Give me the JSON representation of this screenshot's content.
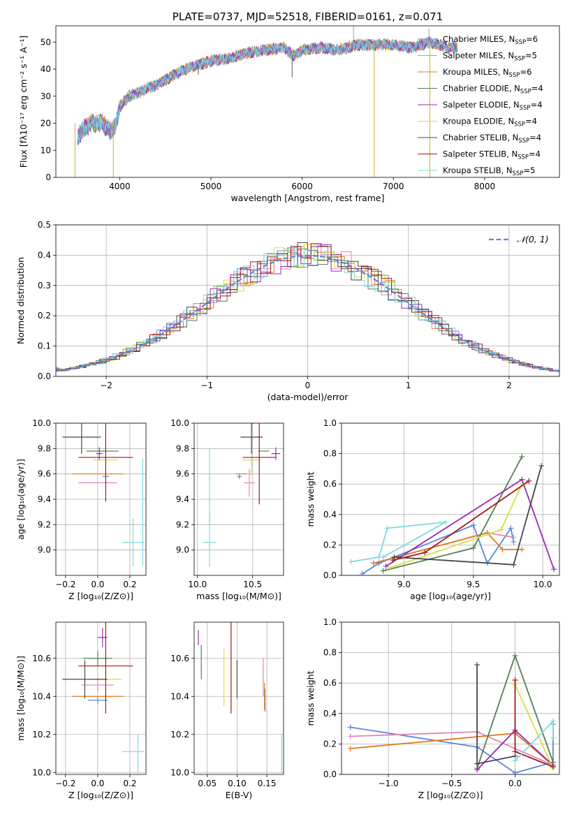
{
  "colors": {
    "Chabrier MILES": "#5b87d6",
    "Salpeter MILES": "#e285b9",
    "Kroupa MILES": "#e07b1c",
    "Chabrier ELODIE": "#547e52",
    "Salpeter ELODIE": "#9a2ab0",
    "Kroupa ELODIE": "#d8df41",
    "Chabrier STELIB": "#474747",
    "Salpeter STELIB": "#a2191d",
    "Kroupa STELIB": "#7fd8dc",
    "normal": "#5b87d6"
  },
  "chart_data": [
    {
      "id": "spectrum",
      "type": "line",
      "title": "PLATE=0737, MJD=52518, FIBERID=0161, z=0.071",
      "xlabel": "wavelength [Angstrom, rest frame]",
      "ylabel": "Flux [fλ10⁻¹⁷ erg cm⁻² s⁻¹ A⁻¹]",
      "xlim": [
        3300,
        8820
      ],
      "ylim": [
        0,
        56
      ],
      "xticks": [
        4000,
        5000,
        6000,
        7000,
        8000
      ],
      "yticks": [
        0,
        10,
        20,
        30,
        40,
        50
      ],
      "grid": false,
      "legend": [
        {
          "model": "Chabrier MILES",
          "label": "Chabrier MILES, N",
          "sub": "SSP",
          "eq": "=6"
        },
        {
          "model": "Salpeter MILES",
          "label": "Salpeter MILES, N",
          "sub": "SSP",
          "eq": "=5"
        },
        {
          "model": "Kroupa MILES",
          "label": "Kroupa MILES, N",
          "sub": "SSP",
          "eq": "=6"
        },
        {
          "model": "Chabrier ELODIE",
          "label": "Chabrier ELODIE, N",
          "sub": "SSP",
          "eq": "=4"
        },
        {
          "model": "Salpeter ELODIE",
          "label": "Salpeter ELODIE, N",
          "sub": "SSP",
          "eq": "=4"
        },
        {
          "model": "Kroupa ELODIE",
          "label": "Kroupa ELODIE, N",
          "sub": "SSP",
          "eq": "=4"
        },
        {
          "model": "Chabrier STELIB",
          "label": "Chabrier STELIB, N",
          "sub": "SSP",
          "eq": "=4"
        },
        {
          "model": "Salpeter STELIB",
          "label": "Salpeter STELIB, N",
          "sub": "SSP",
          "eq": "=4"
        },
        {
          "model": "Kroupa STELIB",
          "label": "Kroupa STELIB, N",
          "sub": "SSP",
          "eq": "=5"
        }
      ],
      "continuum": [
        [
          3540,
          15
        ],
        [
          3600,
          18
        ],
        [
          3700,
          20
        ],
        [
          3800,
          20
        ],
        [
          3900,
          17
        ],
        [
          3950,
          19
        ],
        [
          4000,
          26
        ],
        [
          4100,
          30
        ],
        [
          4200,
          31
        ],
        [
          4300,
          33
        ],
        [
          4400,
          34
        ],
        [
          4600,
          38
        ],
        [
          4800,
          41
        ],
        [
          5000,
          43
        ],
        [
          5200,
          44
        ],
        [
          5400,
          46
        ],
        [
          5600,
          47
        ],
        [
          5800,
          48
        ],
        [
          5900,
          45
        ],
        [
          6000,
          47
        ],
        [
          6200,
          48
        ],
        [
          6400,
          47
        ],
        [
          6600,
          49
        ],
        [
          6800,
          49
        ],
        [
          7000,
          49
        ],
        [
          7200,
          48
        ],
        [
          7400,
          50
        ],
        [
          7600,
          48
        ],
        [
          7700,
          48
        ]
      ],
      "spikes_down": [
        [
          3510,
          0
        ],
        [
          3930,
          0
        ],
        [
          6790,
          0
        ],
        [
          7400,
          0
        ],
        [
          5890,
          37
        ],
        [
          4862,
          38
        ]
      ],
      "spikes_up": [
        [
          6563,
          56
        ],
        [
          7390,
          55
        ]
      ]
    },
    {
      "id": "residuals",
      "type": "histogram",
      "xlabel": "(data-model)/error",
      "ylabel": "Normed distribution",
      "xlim": [
        -2.5,
        2.5
      ],
      "ylim": [
        0,
        0.5
      ],
      "xticks": [
        -2,
        -1,
        0,
        1,
        2
      ],
      "yticks": [
        0.0,
        0.1,
        0.2,
        0.3,
        0.4,
        0.5
      ],
      "grid": true,
      "legend_label": "𝒩(0, 1)",
      "legend_position": "top-right",
      "bin_width": 0.1
    },
    {
      "id": "age-vs-Z",
      "type": "scatter",
      "xlabel": "Z [log₁₀(Z/Z⊙)]",
      "ylabel": "age  [log₁₀(age/yr)]",
      "xlim": [
        -0.26,
        0.3
      ],
      "ylim": [
        8.8,
        10.0
      ],
      "xticks": [
        -0.2,
        0.0,
        0.2
      ],
      "yticks": [
        9.0,
        9.2,
        9.4,
        9.6,
        9.8,
        10.0
      ],
      "grid": true,
      "points": [
        {
          "model": "Chabrier MILES",
          "x": 0.05,
          "y": 9.58,
          "xerr": 0.02,
          "yerr": 0.02
        },
        {
          "model": "Salpeter MILES",
          "x": 0.0,
          "y": 9.53,
          "xerr": 0.12,
          "yerr": 0.0
        },
        {
          "model": "Kroupa MILES",
          "x": 0.0,
          "y": 9.6,
          "xerr": 0.16,
          "yerr": 0.0
        },
        {
          "model": "Chabrier ELODIE",
          "x": 0.03,
          "y": 9.78,
          "xerr": 0.1,
          "yerr": 0.0
        },
        {
          "model": "Salpeter ELODIE",
          "x": 0.01,
          "y": 9.76,
          "xerr": 0.02,
          "yerr": 0.05
        },
        {
          "model": "Kroupa ELODIE",
          "x": 0.05,
          "y": 9.71,
          "xerr": 0.08,
          "yerr": 0.25
        },
        {
          "model": "Chabrier STELIB",
          "x": -0.1,
          "y": 9.89,
          "xerr": 0.12,
          "yerr": 0.13
        },
        {
          "model": "Salpeter STELIB",
          "x": 0.05,
          "y": 9.73,
          "xerr": 0.17,
          "yerr": 0.35
        },
        {
          "model": "Kroupa STELIB",
          "x": 0.22,
          "y": 9.06,
          "xerr": 0.07,
          "yerr": 0.19
        },
        {
          "model": "Kroupa STELIB",
          "x": 0.28,
          "y": 9.3,
          "xerr": 0.0,
          "yerr": 0.42
        }
      ]
    },
    {
      "id": "age-vs-mass",
      "type": "scatter",
      "xlabel": "mass [log₁₀(M/M⊙)]",
      "ylabel": "",
      "xlim": [
        9.97,
        10.78
      ],
      "ylim": [
        8.8,
        10.0
      ],
      "xticks": [
        10.0,
        10.5
      ],
      "yticks": [
        9.0,
        9.2,
        9.4,
        9.6,
        9.8,
        10.0
      ],
      "grid": true,
      "points": [
        {
          "model": "Chabrier MILES",
          "x": 10.38,
          "y": 9.58,
          "xerr": 0.02,
          "yerr": 0.02
        },
        {
          "model": "Salpeter MILES",
          "x": 10.47,
          "y": 9.53,
          "xerr": 0.05,
          "yerr": 0.11
        },
        {
          "model": "Kroupa MILES",
          "x": 10.4,
          "y": 9.6,
          "xerr": 0.05,
          "yerr": 0.0
        },
        {
          "model": "Chabrier ELODIE",
          "x": 10.6,
          "y": 9.78,
          "xerr": 0.05,
          "yerr": 0.0
        },
        {
          "model": "Salpeter ELODIE",
          "x": 10.71,
          "y": 9.76,
          "xerr": 0.04,
          "yerr": 0.05
        },
        {
          "model": "Kroupa ELODIE",
          "x": 10.49,
          "y": 9.71,
          "xerr": 0.08,
          "yerr": 0.12
        },
        {
          "model": "Chabrier STELIB",
          "x": 10.49,
          "y": 9.89,
          "xerr": 0.1,
          "yerr": 0.13
        },
        {
          "model": "Salpeter STELIB",
          "x": 10.56,
          "y": 9.73,
          "xerr": 0.15,
          "yerr": 0.37
        },
        {
          "model": "Kroupa STELIB",
          "x": 10.11,
          "y": 9.06,
          "xerr": 0.06,
          "yerr": 0.19
        },
        {
          "model": "Kroupa STELIB",
          "x": 10.11,
          "y": 9.5,
          "xerr": 0.0,
          "yerr": 0.3
        }
      ]
    },
    {
      "id": "massweight-vs-age",
      "type": "line",
      "xlabel": "age  [log₁₀(age/yr)]",
      "ylabel": "mass weight",
      "xlim": [
        8.55,
        10.12
      ],
      "ylim": [
        0,
        1.0
      ],
      "xticks": [
        9.0,
        9.5,
        10.0
      ],
      "yticks": [
        0.0,
        0.2,
        0.4,
        0.6,
        0.8,
        1.0
      ],
      "grid": true,
      "series": [
        {
          "model": "Chabrier MILES",
          "x": [
            8.7,
            8.82,
            9.5,
            9.6,
            9.77,
            9.79
          ],
          "y": [
            0.01,
            0.08,
            0.33,
            0.08,
            0.31,
            0.22
          ]
        },
        {
          "model": "Salpeter MILES",
          "x": [
            8.78,
            9.6,
            9.79
          ],
          "y": [
            0.08,
            0.28,
            0.25
          ]
        },
        {
          "model": "Kroupa MILES",
          "x": [
            8.78,
            9.6,
            9.71,
            9.85
          ],
          "y": [
            0.08,
            0.28,
            0.17,
            0.17
          ]
        },
        {
          "model": "Chabrier ELODIE",
          "x": [
            8.85,
            9.5,
            9.85
          ],
          "y": [
            0.03,
            0.18,
            0.78
          ]
        },
        {
          "model": "Salpeter ELODIE",
          "x": [
            8.87,
            9.85,
            10.08
          ],
          "y": [
            0.06,
            0.63,
            0.04
          ]
        },
        {
          "model": "Kroupa ELODIE",
          "x": [
            8.9,
            9.7,
            9.85
          ],
          "y": [
            0.05,
            0.3,
            0.6
          ]
        },
        {
          "model": "Chabrier STELIB",
          "x": [
            8.93,
            9.79,
            9.99
          ],
          "y": [
            0.12,
            0.07,
            0.72
          ]
        },
        {
          "model": "Salpeter STELIB",
          "x": [
            8.92,
            9.15,
            9.9
          ],
          "y": [
            0.1,
            0.15,
            0.62
          ]
        },
        {
          "model": "Kroupa STELIB",
          "x": [
            8.62,
            8.82,
            8.88,
            9.3,
            8.85
          ],
          "y": [
            0.09,
            0.12,
            0.31,
            0.35,
            0.12
          ]
        }
      ]
    },
    {
      "id": "mass-vs-Z",
      "type": "scatter",
      "xlabel": "Z [log₁₀(Z/Z⊙)]",
      "ylabel": "mass [log₁₀(M/M⊙)]",
      "xlim": [
        -0.26,
        0.3
      ],
      "ylim": [
        9.99,
        10.79
      ],
      "xticks": [
        -0.2,
        0.0,
        0.2
      ],
      "yticks": [
        10.0,
        10.2,
        10.4,
        10.6
      ],
      "grid": true,
      "points": [
        {
          "model": "Chabrier MILES",
          "x": 0.0,
          "y": 10.38,
          "xerr": 0.06,
          "yerr": 0.02
        },
        {
          "model": "Salpeter MILES",
          "x": 0.0,
          "y": 10.46,
          "xerr": 0.1,
          "yerr": 0.04
        },
        {
          "model": "Kroupa MILES",
          "x": 0.0,
          "y": 10.4,
          "xerr": 0.16,
          "yerr": 0.0
        },
        {
          "model": "Chabrier ELODIE",
          "x": 0.0,
          "y": 10.6,
          "xerr": 0.09,
          "yerr": 0.04
        },
        {
          "model": "Salpeter ELODIE",
          "x": 0.03,
          "y": 10.71,
          "xerr": 0.03,
          "yerr": 0.05
        },
        {
          "model": "Kroupa ELODIE",
          "x": 0.05,
          "y": 10.49,
          "xerr": 0.1,
          "yerr": 0.18
        },
        {
          "model": "Chabrier STELIB",
          "x": -0.08,
          "y": 10.49,
          "xerr": 0.14,
          "yerr": 0.1
        },
        {
          "model": "Salpeter STELIB",
          "x": 0.05,
          "y": 10.56,
          "xerr": 0.17,
          "yerr": 0.25
        },
        {
          "model": "Kroupa STELIB",
          "x": 0.22,
          "y": 10.11,
          "xerr": 0.07,
          "yerr": 0.0
        },
        {
          "model": "Kroupa STELIB",
          "x": 0.25,
          "y": 10.1,
          "xerr": 0.0,
          "yerr": 0.1
        }
      ]
    },
    {
      "id": "mass-vs-EBV",
      "type": "scatter",
      "xlabel": "E(B-V)",
      "ylabel": "",
      "xlim": [
        0.028,
        0.178
      ],
      "ylim": [
        9.99,
        10.79
      ],
      "xticks": [
        0.05,
        0.1,
        0.15
      ],
      "yticks": [
        10.0,
        10.2,
        10.4,
        10.6
      ],
      "grid": true,
      "points": [
        {
          "model": "Chabrier MILES",
          "x": 0.147,
          "y": 10.38,
          "xerr": 0.0,
          "yerr": 0.06
        },
        {
          "model": "Salpeter MILES",
          "x": 0.144,
          "y": 10.5,
          "xerr": 0.0,
          "yerr": 0.1
        },
        {
          "model": "Kroupa MILES",
          "x": 0.146,
          "y": 10.4,
          "xerr": 0.0,
          "yerr": 0.07
        },
        {
          "model": "Chabrier ELODIE",
          "x": 0.04,
          "y": 10.58,
          "xerr": 0.0,
          "yerr": 0.09
        },
        {
          "model": "Salpeter ELODIE",
          "x": 0.035,
          "y": 10.71,
          "xerr": 0.0,
          "yerr": 0.04
        },
        {
          "model": "Kroupa ELODIE",
          "x": 0.078,
          "y": 10.5,
          "xerr": 0.0,
          "yerr": 0.15
        },
        {
          "model": "Chabrier STELIB",
          "x": 0.1,
          "y": 10.49,
          "xerr": 0.0,
          "yerr": 0.1
        },
        {
          "model": "Salpeter STELIB",
          "x": 0.09,
          "y": 10.57,
          "xerr": 0.0,
          "yerr": 0.26
        },
        {
          "model": "Kroupa STELIB",
          "x": 0.175,
          "y": 10.1,
          "xerr": 0.0,
          "yerr": 0.1
        }
      ]
    },
    {
      "id": "massweight-vs-Z",
      "type": "line",
      "xlabel": "Z [log₁₀(Z/Z⊙)]",
      "ylabel": "mass weight",
      "xlim": [
        -1.37,
        0.35
      ],
      "ylim": [
        0,
        1.0
      ],
      "xticks": [
        -1.0,
        -0.5,
        0.0
      ],
      "yticks": [
        0.0,
        0.2,
        0.4,
        0.6,
        0.8,
        1.0
      ],
      "grid": true,
      "series": [
        {
          "model": "Chabrier MILES",
          "x": [
            -1.3,
            -0.3,
            0.0,
            0.3,
            0.3
          ],
          "y": [
            0.31,
            0.18,
            0.01,
            0.08,
            0.33
          ]
        },
        {
          "model": "Salpeter MILES",
          "x": [
            -1.3,
            -0.3,
            0.3
          ],
          "y": [
            0.25,
            0.28,
            0.06
          ]
        },
        {
          "model": "Kroupa MILES",
          "x": [
            -1.3,
            0.0,
            0.3
          ],
          "y": [
            0.17,
            0.27,
            0.06
          ]
        },
        {
          "model": "Chabrier ELODIE",
          "x": [
            -0.3,
            0.0,
            0.3
          ],
          "y": [
            0.04,
            0.78,
            0.08
          ]
        },
        {
          "model": "Salpeter ELODIE",
          "x": [
            -0.3,
            0.0,
            0.3
          ],
          "y": [
            0.03,
            0.29,
            0.06
          ]
        },
        {
          "model": "Kroupa ELODIE",
          "x": [
            0.0,
            0.3
          ],
          "y": [
            0.59,
            0.04
          ]
        },
        {
          "model": "Chabrier STELIB",
          "x": [
            -0.3,
            -0.3,
            0.0
          ],
          "y": [
            0.72,
            0.07,
            0.12
          ]
        },
        {
          "model": "Salpeter STELIB",
          "x": [
            0.0,
            0.0,
            0.3
          ],
          "y": [
            0.62,
            0.15,
            0.05
          ]
        },
        {
          "model": "Kroupa STELIB",
          "x": [
            0.0,
            0.3,
            0.3
          ],
          "y": [
            0.09,
            0.35,
            0.24
          ]
        }
      ]
    }
  ]
}
